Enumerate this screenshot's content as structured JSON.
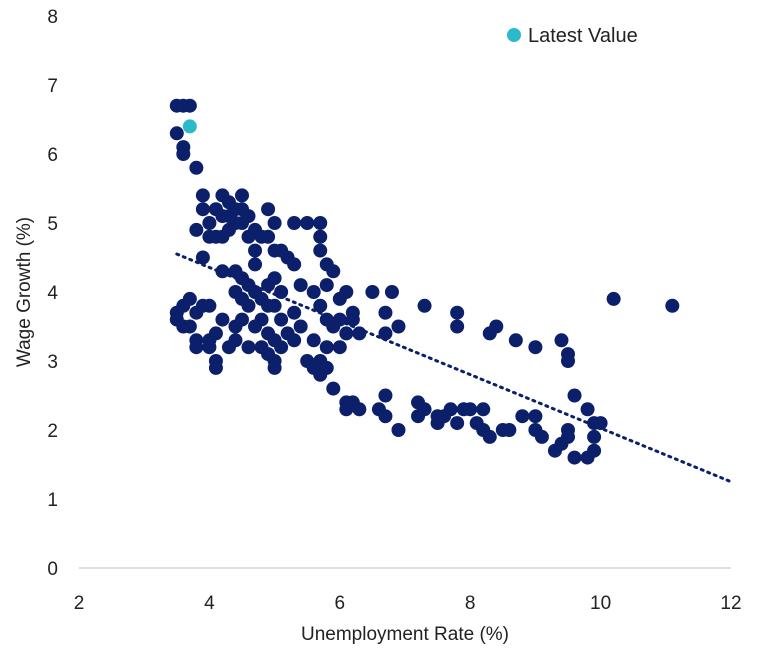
{
  "chart_data": {
    "type": "scatter",
    "title": "",
    "xlabel": "Unemployment Rate (%)",
    "ylabel": "Wage Growth (%)",
    "xlim": [
      2,
      12
    ],
    "ylim": [
      0,
      8
    ],
    "x_ticks": [
      "2",
      "4",
      "6",
      "8",
      "10",
      "12"
    ],
    "y_ticks": [
      "0",
      "1",
      "2",
      "3",
      "4",
      "5",
      "6",
      "7",
      "8"
    ],
    "grid": false,
    "legend": {
      "position": "top-right",
      "entries": [
        "Latest Value"
      ]
    },
    "colors": {
      "points": "#0b1f6b",
      "latest": "#2bb9cc",
      "trendline": "#0b1f6b"
    },
    "trendline": {
      "style": "dotted",
      "x": [
        3.5,
        12.0
      ],
      "y": [
        4.55,
        1.25
      ]
    },
    "series": [
      {
        "points": [
          [
            3.5,
            6.7
          ],
          [
            3.6,
            6.7
          ],
          [
            3.7,
            6.7
          ],
          [
            3.5,
            6.3
          ],
          [
            3.6,
            6.1
          ],
          [
            3.6,
            6.0
          ],
          [
            3.8,
            5.8
          ],
          [
            3.5,
            3.7
          ],
          [
            3.5,
            3.6
          ],
          [
            3.6,
            3.8
          ],
          [
            3.6,
            3.5
          ],
          [
            3.7,
            3.9
          ],
          [
            3.7,
            3.5
          ],
          [
            3.8,
            3.7
          ],
          [
            3.8,
            3.3
          ],
          [
            3.8,
            3.2
          ],
          [
            3.9,
            3.8
          ],
          [
            4.0,
            3.8
          ],
          [
            4.0,
            3.2
          ],
          [
            4.0,
            3.3
          ],
          [
            4.1,
            3.4
          ],
          [
            4.1,
            3.0
          ],
          [
            4.1,
            2.9
          ],
          [
            4.2,
            3.6
          ],
          [
            4.3,
            3.2
          ],
          [
            4.4,
            3.3
          ],
          [
            4.4,
            3.5
          ],
          [
            3.9,
            5.4
          ],
          [
            3.9,
            5.2
          ],
          [
            4.0,
            5.0
          ],
          [
            4.0,
            4.8
          ],
          [
            4.1,
            5.2
          ],
          [
            4.1,
            4.8
          ],
          [
            4.2,
            5.4
          ],
          [
            4.2,
            5.1
          ],
          [
            4.2,
            4.8
          ],
          [
            4.3,
            5.3
          ],
          [
            4.3,
            5.1
          ],
          [
            4.3,
            4.9
          ],
          [
            4.4,
            5.2
          ],
          [
            4.4,
            5.0
          ],
          [
            4.5,
            5.4
          ],
          [
            4.5,
            5.2
          ],
          [
            4.5,
            5.0
          ],
          [
            4.6,
            5.1
          ],
          [
            4.6,
            4.8
          ],
          [
            4.7,
            4.9
          ],
          [
            4.8,
            4.8
          ],
          [
            4.9,
            5.2
          ],
          [
            4.9,
            4.8
          ],
          [
            5.0,
            5.0
          ],
          [
            3.8,
            4.9
          ],
          [
            3.9,
            4.5
          ],
          [
            4.2,
            4.3
          ],
          [
            4.4,
            4.3
          ],
          [
            4.4,
            4.0
          ],
          [
            4.5,
            4.2
          ],
          [
            4.5,
            3.9
          ],
          [
            4.6,
            4.1
          ],
          [
            4.6,
            3.8
          ],
          [
            4.7,
            4.6
          ],
          [
            4.7,
            4.4
          ],
          [
            4.7,
            4.0
          ],
          [
            4.8,
            3.9
          ],
          [
            4.8,
            3.6
          ],
          [
            4.9,
            4.1
          ],
          [
            4.9,
            3.8
          ],
          [
            5.0,
            4.6
          ],
          [
            5.0,
            4.2
          ],
          [
            5.0,
            3.8
          ],
          [
            5.1,
            4.6
          ],
          [
            5.1,
            4.0
          ],
          [
            5.2,
            4.5
          ],
          [
            5.3,
            4.4
          ],
          [
            5.3,
            3.7
          ],
          [
            4.5,
            3.6
          ],
          [
            4.6,
            3.2
          ],
          [
            4.7,
            3.5
          ],
          [
            4.8,
            3.2
          ],
          [
            4.9,
            3.4
          ],
          [
            4.9,
            3.1
          ],
          [
            5.0,
            3.3
          ],
          [
            5.0,
            3.0
          ],
          [
            5.0,
            2.9
          ],
          [
            5.1,
            3.2
          ],
          [
            5.1,
            3.6
          ],
          [
            5.2,
            3.4
          ],
          [
            5.3,
            3.3
          ],
          [
            5.4,
            3.5
          ],
          [
            5.5,
            3.0
          ],
          [
            5.6,
            3.3
          ],
          [
            5.6,
            2.9
          ],
          [
            5.7,
            3.0
          ],
          [
            5.7,
            2.8
          ],
          [
            5.8,
            3.2
          ],
          [
            5.8,
            2.9
          ],
          [
            5.9,
            3.5
          ],
          [
            6.0,
            3.2
          ],
          [
            6.0,
            3.6
          ],
          [
            6.1,
            3.4
          ],
          [
            6.2,
            3.6
          ],
          [
            6.3,
            3.4
          ],
          [
            5.3,
            5.0
          ],
          [
            5.5,
            5.0
          ],
          [
            5.7,
            5.0
          ],
          [
            5.7,
            4.8
          ],
          [
            5.7,
            4.6
          ],
          [
            5.8,
            4.4
          ],
          [
            5.8,
            4.1
          ],
          [
            5.9,
            4.3
          ],
          [
            5.4,
            4.1
          ],
          [
            5.6,
            4.0
          ],
          [
            5.7,
            3.8
          ],
          [
            5.8,
            3.6
          ],
          [
            6.0,
            3.9
          ],
          [
            6.1,
            4.0
          ],
          [
            6.2,
            3.7
          ],
          [
            5.9,
            2.6
          ],
          [
            6.1,
            2.4
          ],
          [
            6.1,
            2.3
          ],
          [
            6.2,
            2.4
          ],
          [
            6.3,
            2.3
          ],
          [
            6.6,
            2.3
          ],
          [
            6.7,
            2.5
          ],
          [
            6.7,
            2.2
          ],
          [
            6.9,
            2.0
          ],
          [
            6.5,
            4.0
          ],
          [
            6.7,
            3.7
          ],
          [
            6.7,
            3.4
          ],
          [
            6.8,
            4.0
          ],
          [
            6.9,
            3.5
          ],
          [
            7.3,
            3.8
          ],
          [
            7.8,
            3.7
          ],
          [
            7.8,
            3.5
          ],
          [
            7.2,
            2.4
          ],
          [
            7.2,
            2.2
          ],
          [
            7.3,
            2.3
          ],
          [
            7.5,
            2.2
          ],
          [
            7.5,
            2.1
          ],
          [
            7.6,
            2.2
          ],
          [
            7.7,
            2.3
          ],
          [
            7.8,
            2.1
          ],
          [
            7.9,
            2.3
          ],
          [
            8.0,
            2.3
          ],
          [
            8.1,
            2.1
          ],
          [
            8.2,
            2.3
          ],
          [
            8.2,
            2.0
          ],
          [
            8.3,
            1.9
          ],
          [
            8.5,
            2.0
          ],
          [
            8.6,
            2.0
          ],
          [
            8.8,
            2.2
          ],
          [
            9.0,
            2.2
          ],
          [
            9.0,
            2.0
          ],
          [
            9.1,
            1.9
          ],
          [
            8.3,
            3.4
          ],
          [
            8.4,
            3.5
          ],
          [
            8.7,
            3.3
          ],
          [
            9.0,
            3.2
          ],
          [
            9.3,
            1.7
          ],
          [
            9.4,
            3.3
          ],
          [
            9.4,
            1.8
          ],
          [
            9.5,
            3.1
          ],
          [
            9.5,
            3.0
          ],
          [
            9.5,
            2.0
          ],
          [
            9.5,
            1.9
          ],
          [
            9.6,
            2.5
          ],
          [
            9.6,
            1.6
          ],
          [
            9.8,
            2.3
          ],
          [
            9.8,
            1.6
          ],
          [
            9.9,
            2.1
          ],
          [
            9.9,
            1.9
          ],
          [
            9.9,
            1.7
          ],
          [
            10.0,
            2.1
          ],
          [
            10.2,
            3.9
          ],
          [
            11.1,
            3.8
          ]
        ]
      },
      {
        "name": "Latest Value",
        "points": [
          [
            3.7,
            6.4
          ]
        ]
      }
    ]
  }
}
